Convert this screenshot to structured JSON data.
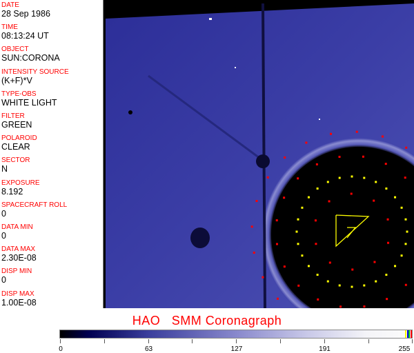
{
  "sidebar": {
    "fields": [
      {
        "label": "DATE",
        "value": "28 Sep 1986"
      },
      {
        "label": "TIME",
        "value": "08:13:24 UT"
      },
      {
        "label": "OBJECT",
        "value": "SUN:CORONA"
      },
      {
        "label": "INTENSITY SOURCE",
        "value": "(K+F)*V"
      },
      {
        "label": "TYPE-OBS",
        "value": "WHITE LIGHT"
      },
      {
        "label": "FILTER",
        "value": "GREEN"
      },
      {
        "label": "POLAROID",
        "value": "CLEAR"
      },
      {
        "label": "SECTOR",
        "value": "N"
      },
      {
        "label": "EXPOSURE",
        "value": "8.192"
      },
      {
        "label": "SPACECRAFT ROLL",
        "value": "0"
      },
      {
        "label": "DATA MIN",
        "value": "0"
      },
      {
        "label": "DATA MAX",
        "value": "2.30E-08"
      },
      {
        "label": "DISP MIN",
        "value": "0"
      },
      {
        "label": "DISP MAX",
        "value": "1.00E-08"
      }
    ]
  },
  "image": {
    "title": "HAO   SMM Coronagraph"
  },
  "colorbar": {
    "labels": [
      "0",
      "63",
      "127",
      "191",
      "255"
    ],
    "colormap": [
      "#000000",
      "#000050",
      "#3a3e9c",
      "#8888cc",
      "#c8c8e8",
      "#fafafa"
    ],
    "end_marks": [
      "#ffff00",
      "#0000ff",
      "#00c000",
      "#ff0000"
    ]
  },
  "overlay_colors": {
    "grid_red": "#ff0000",
    "grid_yellow": "#ffff00",
    "sky": "#3c3fa8"
  }
}
